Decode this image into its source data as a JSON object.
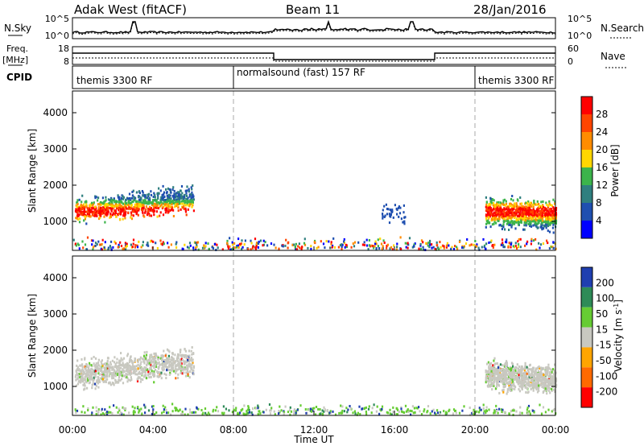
{
  "header": {
    "site": "Adak West (fitACF)",
    "beam": "Beam 11",
    "date": "28/Jan/2016"
  },
  "panels": {
    "nsky": {
      "label": "N.Sky",
      "right_label": "N.Search",
      "left_ticks": [
        "10^5",
        "10^0"
      ],
      "right_ticks": [
        "10^5",
        "10^0"
      ]
    },
    "freq": {
      "label_line1": "Freq.",
      "label_line2": "[MHz]",
      "right_label": "Nave",
      "left_ticks": [
        "18",
        "8"
      ],
      "right_ticks": [
        "60",
        "0"
      ]
    },
    "cpid": {
      "label": "CPID",
      "segments": [
        {
          "label": "themis 3300 RF",
          "start_h": 0,
          "end_h": 8
        },
        {
          "label": "normalsound (fast) 157 RF",
          "start_h": 8,
          "end_h": 20
        },
        {
          "label": "themis 3300 RF",
          "start_h": 20,
          "end_h": 24
        }
      ]
    }
  },
  "colors": {
    "power_scale": [
      "#0000ff",
      "#1f4fb0",
      "#2f7f7f",
      "#3cb44b",
      "#ffd700",
      "#ff8c00",
      "#ff4500",
      "#ff0000"
    ],
    "velocity_scale": [
      "#ff0000",
      "#ff6a00",
      "#ffa500",
      "#c8c8c0",
      "#66cc33",
      "#2e8b57",
      "#1f3fb0"
    ],
    "separator": "#aaaaaa"
  },
  "chart_data": [
    {
      "type": "heatmap",
      "name": "power",
      "ylabel": "Slant Range [km]",
      "ylim": [
        200,
        4600
      ],
      "yticks": [
        "1000",
        "2000",
        "3000",
        "4000"
      ],
      "colorbar_label": "Power [dB]",
      "colorbar_ticks": [
        "4",
        "8",
        "12",
        "16",
        "20",
        "24",
        "28"
      ],
      "regions": [
        {
          "x_start": 0.1,
          "x_end": 6.0,
          "y_center": 1300,
          "y_spread": 200,
          "max": "red"
        },
        {
          "x_start": 20.5,
          "x_end": 24.0,
          "y_center": 1300,
          "y_spread": 220,
          "max": "red"
        },
        {
          "x_start": 0.0,
          "x_end": 24.0,
          "y_center": 350,
          "y_spread": 120,
          "max": "scattered"
        },
        {
          "x_start": 15.3,
          "x_end": 16.5,
          "y_center": 1250,
          "y_spread": 150,
          "max": "blue"
        }
      ]
    },
    {
      "type": "heatmap",
      "name": "velocity",
      "ylabel": "Slant Range [km]",
      "ylim": [
        200,
        4600
      ],
      "yticks": [
        "1000",
        "2000",
        "3000",
        "4000"
      ],
      "colorbar_label": "Velocity [m s^-1]",
      "colorbar_ticks": [
        "200",
        "100",
        "50",
        "15",
        "-15",
        "-50",
        "-100",
        "-200"
      ],
      "regions": [
        {
          "x_start": 0.1,
          "x_end": 6.0,
          "y_center": 1350,
          "y_spread": 220,
          "max": "gray"
        },
        {
          "x_start": 20.5,
          "x_end": 24.0,
          "y_center": 1350,
          "y_spread": 220,
          "max": "gray"
        },
        {
          "x_start": 0.0,
          "x_end": 24.0,
          "y_center": 330,
          "y_spread": 110,
          "max": "green"
        }
      ]
    }
  ],
  "xaxis": {
    "label": "Time UT",
    "ticks": [
      "00:00",
      "04:00",
      "08:00",
      "12:00",
      "16:00",
      "20:00",
      "00:00"
    ],
    "range_h": [
      0,
      24
    ]
  }
}
